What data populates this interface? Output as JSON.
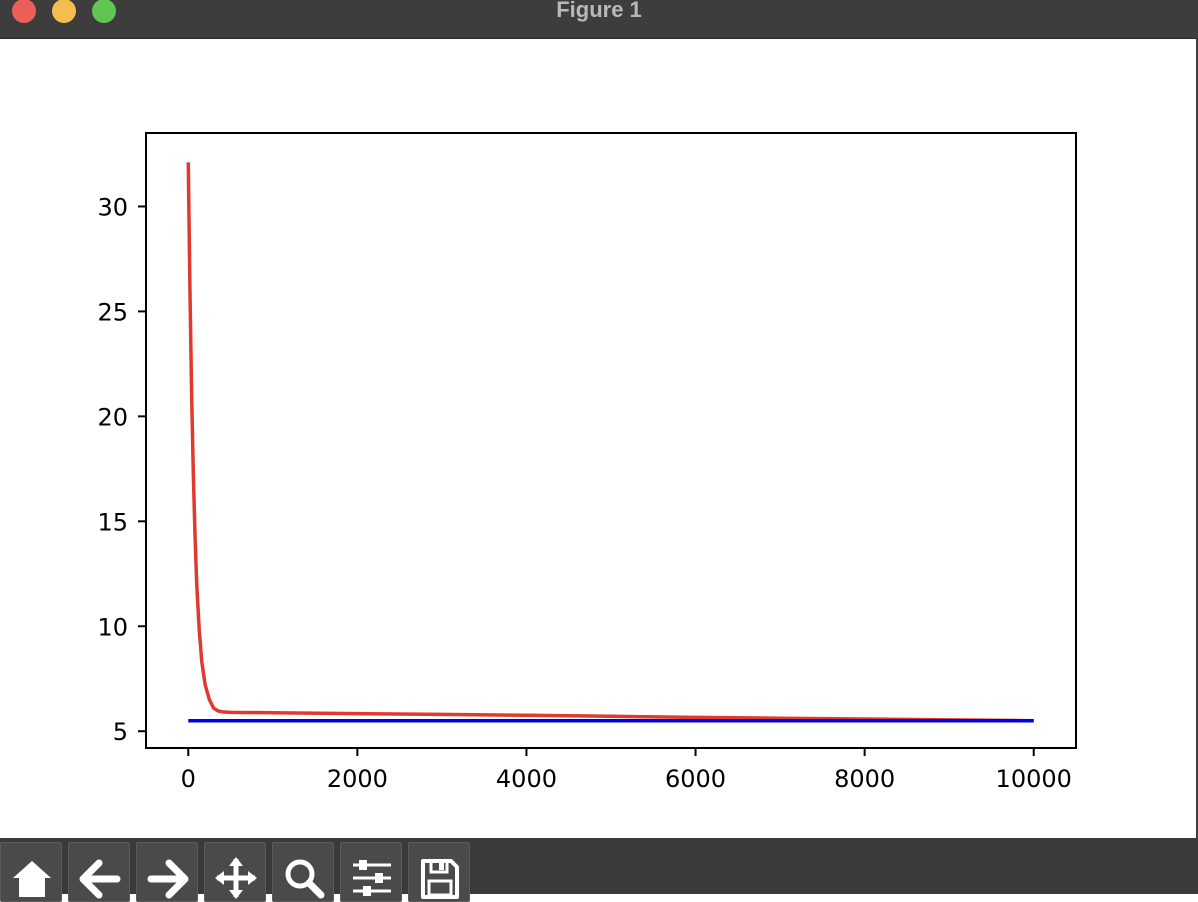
{
  "window": {
    "title": "Figure 1"
  },
  "chart_data": {
    "type": "line",
    "title": "",
    "xlabel": "",
    "ylabel": "",
    "xlim": [
      -500,
      10500
    ],
    "ylim": [
      4.2,
      33.5
    ],
    "xticks": [
      0,
      2000,
      4000,
      6000,
      8000,
      10000
    ],
    "yticks": [
      5,
      10,
      15,
      20,
      25,
      30
    ],
    "grid": false,
    "series": [
      {
        "color": "#e03a2f",
        "x": [
          0,
          20,
          40,
          60,
          80,
          100,
          130,
          160,
          200,
          250,
          300,
          350,
          400,
          500,
          1000,
          2000,
          3000,
          4000,
          5000,
          6000,
          7000,
          8000,
          9000,
          10000
        ],
        "y": [
          32.1,
          26.0,
          21.0,
          17.2,
          14.3,
          12.0,
          9.8,
          8.3,
          7.2,
          6.5,
          6.1,
          5.97,
          5.92,
          5.9,
          5.88,
          5.84,
          5.8,
          5.76,
          5.71,
          5.66,
          5.62,
          5.58,
          5.54,
          5.5
        ]
      },
      {
        "color": "#0000e0",
        "x": [
          0,
          10000
        ],
        "y": [
          5.5,
          5.5
        ]
      }
    ]
  },
  "toolbar": {
    "buttons": [
      "home-icon",
      "back-arrow-icon",
      "forward-arrow-icon",
      "pan-icon",
      "zoom-icon",
      "configure-subplots-icon",
      "save-icon"
    ]
  }
}
